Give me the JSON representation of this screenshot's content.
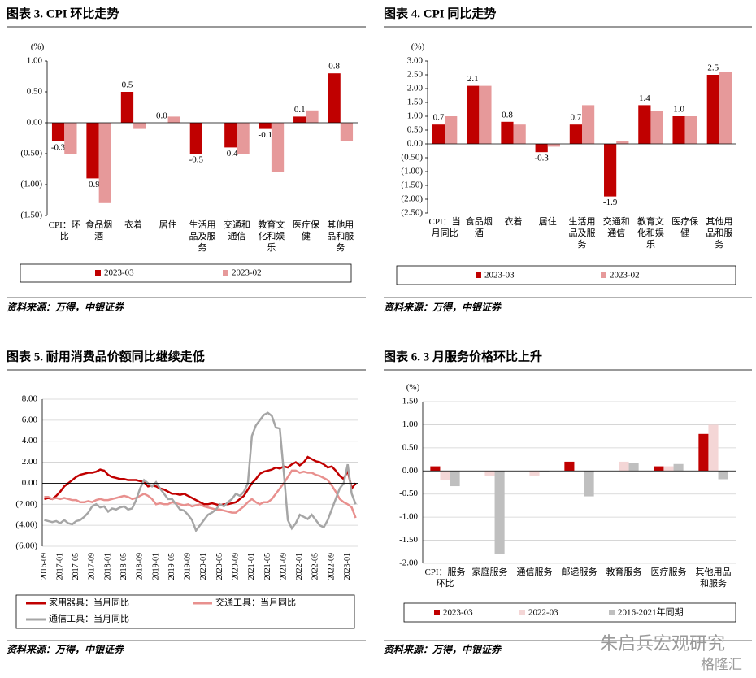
{
  "chart_data": [
    {
      "type": "bar",
      "title": "图表 3. CPI 环比走势",
      "y_unit": "(%)",
      "categories": [
        "CPI：环比",
        "食品烟酒",
        "衣着",
        "居住",
        "生活用品及服务",
        "交通和通信",
        "教育文化和娱乐",
        "医疗保健",
        "其他用品和服务"
      ],
      "series": [
        {
          "name": "2023-03",
          "color": "#c00000",
          "values": [
            -0.3,
            -0.9,
            0.5,
            0.0,
            -0.5,
            -0.4,
            -0.1,
            0.1,
            0.8
          ],
          "value_labels": [
            "-0.3",
            "-0.9",
            "0.5",
            "0.0",
            "-0.5",
            "-0.4",
            "-0.1",
            "0.1",
            "0.8"
          ]
        },
        {
          "name": "2023-02",
          "color": "#e6999a",
          "values": [
            -0.5,
            -1.3,
            -0.1,
            0.1,
            0.0,
            -0.5,
            -0.8,
            0.2,
            -0.3
          ]
        }
      ],
      "ylim": [
        -1.5,
        1
      ],
      "yticks": [
        {
          "value": 1,
          "label": "1.00"
        },
        {
          "value": 0.5,
          "label": "0.50"
        },
        {
          "value": 0,
          "label": "0.00"
        },
        {
          "value": -0.5,
          "label": "(0.50)"
        },
        {
          "value": -1,
          "label": "(1.00)"
        },
        {
          "value": -1.5,
          "label": "(1.50)"
        }
      ],
      "grid": false,
      "legend": "bottom",
      "source": "资料来源：万得，中银证券"
    },
    {
      "type": "bar",
      "title": "图表 4. CPI 同比走势",
      "y_unit": "(%)",
      "categories": [
        "CPI：当月同比",
        "食品烟酒",
        "衣着",
        "居住",
        "生活用品及服务",
        "交通和通信",
        "教育文化和娱乐",
        "医疗保健",
        "其他用品和服务"
      ],
      "series": [
        {
          "name": "2023-03",
          "color": "#c00000",
          "values": [
            0.7,
            2.1,
            0.8,
            -0.3,
            0.7,
            -1.9,
            1.4,
            1.0,
            2.5
          ],
          "value_labels": [
            "0.7",
            "2.1",
            "0.8",
            "-0.3",
            "0.7",
            "-1.9",
            "1.4",
            "1.0",
            "2.5"
          ]
        },
        {
          "name": "2023-02",
          "color": "#e6999a",
          "values": [
            1.0,
            2.1,
            0.7,
            -0.1,
            1.4,
            0.1,
            1.2,
            1.0,
            2.6
          ]
        }
      ],
      "ylim": [
        -2.5,
        3
      ],
      "yticks": [
        {
          "value": 3,
          "label": "3.00"
        },
        {
          "value": 2.5,
          "label": "2.50"
        },
        {
          "value": 2,
          "label": "2.00"
        },
        {
          "value": 1.5,
          "label": "1.50"
        },
        {
          "value": 1,
          "label": "1.00"
        },
        {
          "value": 0.5,
          "label": "0.50"
        },
        {
          "value": 0,
          "label": "0.00"
        },
        {
          "value": -0.5,
          "label": "(0.50)"
        },
        {
          "value": -1,
          "label": "(1.00)"
        },
        {
          "value": -1.5,
          "label": "(1.50)"
        },
        {
          "value": -2,
          "label": "(2.00)"
        },
        {
          "value": -2.5,
          "label": "(2.50)"
        }
      ],
      "grid": false,
      "legend": "bottom",
      "source": "资料来源：万得，中银证券"
    },
    {
      "type": "line",
      "title": "图表 5. 耐用消费品价额同比继续走低",
      "categories": [
        "2016-09",
        null,
        null,
        null,
        "2017-01",
        null,
        null,
        null,
        "2017-05",
        null,
        null,
        null,
        "2017-09",
        null,
        null,
        null,
        "2018-01",
        null,
        null,
        null,
        "2018-05",
        null,
        null,
        null,
        "2018-09",
        null,
        null,
        null,
        "2019-01",
        null,
        null,
        null,
        "2019-05",
        null,
        null,
        null,
        "2019-09",
        null,
        null,
        null,
        "2020-01",
        null,
        null,
        null,
        "2020-05",
        null,
        null,
        null,
        "2020-09",
        null,
        null,
        null,
        "2021-01",
        null,
        null,
        null,
        "2021-05",
        null,
        null,
        null,
        "2021-09",
        null,
        null,
        null,
        "2022-01",
        null,
        null,
        null,
        "2022-05",
        null,
        null,
        null,
        "2022-09",
        null,
        null,
        null,
        "2023-01",
        null,
        null
      ],
      "series": [
        {
          "name": "家用器具：当月同比",
          "color": "#c00000",
          "values": [
            -1.5,
            -1.4,
            -1.5,
            -1.2,
            -0.8,
            -0.3,
            0.0,
            0.3,
            0.6,
            0.8,
            0.9,
            1.0,
            1.0,
            1.1,
            1.3,
            1.2,
            0.8,
            0.6,
            0.5,
            0.4,
            0.4,
            0.3,
            0.3,
            0.3,
            0.2,
            0.1,
            -0.3,
            -0.2,
            -0.3,
            -0.5,
            -0.6,
            -0.8,
            -1.0,
            -1.0,
            -1.1,
            -1.0,
            -1.2,
            -1.4,
            -1.6,
            -1.8,
            -2.0,
            -2.0,
            -1.9,
            -2.0,
            -2.1,
            -2.0,
            -2.0,
            -1.9,
            -1.8,
            -1.5,
            -1.2,
            -0.6,
            0.0,
            0.4,
            0.9,
            1.1,
            1.2,
            1.3,
            1.5,
            1.4,
            1.6,
            1.5,
            1.8,
            2.0,
            1.7,
            2.0,
            2.5,
            2.3,
            2.1,
            2.0,
            1.8,
            1.5,
            1.6,
            1.2,
            0.7,
            0.4,
            1.2,
            -0.5,
            0.0
          ]
        },
        {
          "name": "交通工具：当月同比",
          "color": "#e8908e",
          "values": [
            -1.3,
            -1.3,
            -1.5,
            -1.4,
            -1.5,
            -1.4,
            -1.5,
            -1.6,
            -1.6,
            -1.8,
            -1.8,
            -1.7,
            -1.8,
            -1.6,
            -1.5,
            -1.6,
            -1.6,
            -1.5,
            -1.4,
            -1.3,
            -1.2,
            -1.3,
            -1.5,
            -1.4,
            -1.2,
            -1.0,
            -1.2,
            -1.5,
            -2.0,
            -1.9,
            -2.0,
            -2.0,
            -1.8,
            -1.9,
            -2.0,
            -2.1,
            -2.0,
            -2.2,
            -2.1,
            -2.0,
            -2.2,
            -2.3,
            -2.4,
            -2.5,
            -2.5,
            -2.6,
            -2.7,
            -2.8,
            -2.8,
            -2.5,
            -2.2,
            -1.8,
            -1.5,
            -1.8,
            -2.0,
            -1.8,
            -1.8,
            -1.5,
            -1.0,
            -0.5,
            0.0,
            0.6,
            1.2,
            1.2,
            1.0,
            1.1,
            1.0,
            1.0,
            0.8,
            0.7,
            0.5,
            0.3,
            -0.2,
            -0.8,
            -1.5,
            -1.8,
            -2.0,
            -2.3,
            -3.3
          ]
        },
        {
          "name": "通信工具：当月同比",
          "color": "#a6a6a6",
          "values": [
            -3.5,
            -3.6,
            -3.7,
            -3.6,
            -3.8,
            -3.5,
            -3.8,
            -3.9,
            -3.6,
            -3.5,
            -3.2,
            -2.8,
            -2.2,
            -2.0,
            -2.3,
            -2.2,
            -2.7,
            -2.4,
            -2.5,
            -2.3,
            -2.2,
            -2.5,
            -2.4,
            -1.6,
            -0.5,
            0.3,
            0.0,
            -0.3,
            0.1,
            -0.5,
            -1.0,
            -1.5,
            -1.5,
            -2.0,
            -2.5,
            -2.6,
            -3.0,
            -3.5,
            -4.5,
            -4.0,
            -3.5,
            -3.0,
            -2.8,
            -2.5,
            -2.0,
            -2.2,
            -1.8,
            -1.5,
            -1.0,
            -1.2,
            -0.8,
            0.0,
            4.5,
            5.5,
            6.0,
            6.5,
            6.7,
            6.4,
            5.3,
            5.2,
            1.0,
            -3.5,
            -4.3,
            -3.8,
            -3.0,
            -3.2,
            -3.4,
            -3.0,
            -3.5,
            -4.0,
            -4.2,
            -3.5,
            -2.5,
            -1.5,
            -0.5,
            0.0,
            1.8,
            -1.0,
            -2.0
          ]
        }
      ],
      "ylim": [
        -6,
        8
      ],
      "yticks": [
        {
          "value": 8,
          "label": "8.00"
        },
        {
          "value": 6,
          "label": "6.00"
        },
        {
          "value": 4,
          "label": "4.00"
        },
        {
          "value": 2,
          "label": "2.00"
        },
        {
          "value": 0,
          "label": "0.00"
        },
        {
          "value": -2,
          "label": "(2.00)"
        },
        {
          "value": -4,
          "label": "(4.00)"
        },
        {
          "value": -6,
          "label": "(6.00)"
        }
      ],
      "grid": true,
      "legend": "bottom",
      "source": "资料来源：万得，中银证券"
    },
    {
      "type": "bar",
      "title": "图表 6. 3 月服务价格环比上升",
      "y_unit": "(%)",
      "categories": [
        "CPI：服务环比",
        "家庭服务",
        "通信服务",
        "邮递服务",
        "教育服务",
        "医疗服务",
        "其他用品和服务"
      ],
      "series": [
        {
          "name": "2023-03",
          "color": "#c00000",
          "values": [
            0.1,
            0.0,
            0.0,
            0.2,
            0.0,
            0.1,
            0.8
          ]
        },
        {
          "name": "2022-03",
          "color": "#f4d6d6",
          "values": [
            -0.2,
            -0.1,
            -0.1,
            0.0,
            0.2,
            0.1,
            1.0
          ]
        },
        {
          "name": "2016-2021年同期",
          "color": "#bfbfbf",
          "values": [
            -0.33,
            -1.8,
            -0.03,
            -0.55,
            0.17,
            0.15,
            -0.18
          ]
        }
      ],
      "ylim": [
        -2,
        1.5
      ],
      "yticks": [
        {
          "value": 1.5,
          "label": "1.50"
        },
        {
          "value": 1,
          "label": "1.00"
        },
        {
          "value": 0.5,
          "label": "0.50"
        },
        {
          "value": 0,
          "label": "0.00"
        },
        {
          "value": -0.5,
          "label": "-0.50"
        },
        {
          "value": -1,
          "label": "-1.00"
        },
        {
          "value": -1.5,
          "label": "-1.50"
        },
        {
          "value": -2,
          "label": "-2.00"
        }
      ],
      "grid": true,
      "legend": "bottom",
      "source": "资料来源：万得，中银证券"
    }
  ],
  "watermark": {
    "text": "朱启兵宏观研究",
    "logo": "格隆汇"
  }
}
